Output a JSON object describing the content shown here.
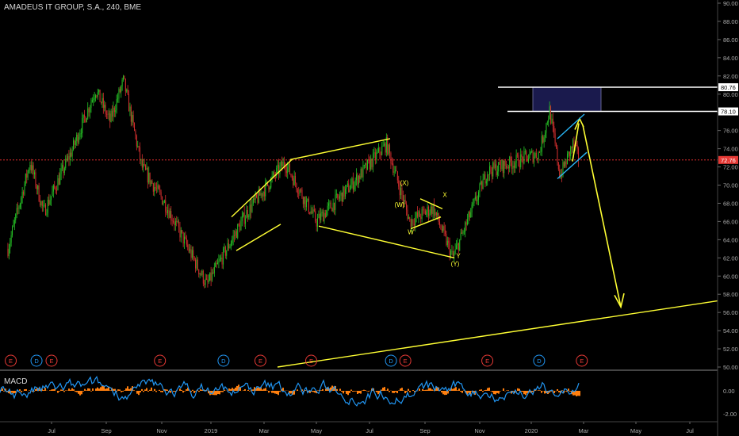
{
  "header": {
    "title": "AMADEUS IT GROUP, S.A., 240, BME"
  },
  "macd": {
    "label": "MACD",
    "ticks": [
      "0.00",
      "-2.00"
    ]
  },
  "colors": {
    "background": "#000000",
    "up": "#26c326",
    "down": "#d32f2f",
    "drawing": "#ffff33",
    "channel": "#29b6f6",
    "box": "#1a1a4d",
    "resistance": "#ffffff",
    "last_price": "#ff3333",
    "macd_line": "#2196f3",
    "macd_hist": "#ff7f0e"
  },
  "chart_data": {
    "type": "candlestick",
    "title": "AMADEUS IT GROUP, S.A., 240, BME",
    "ylim": [
      50,
      90
    ],
    "y_ticks": [
      "90.00",
      "88.00",
      "86.00",
      "84.00",
      "82.00",
      "80.00",
      "78.00",
      "76.00",
      "74.00",
      "72.00",
      "70.00",
      "68.00",
      "66.00",
      "64.00",
      "62.00",
      "60.00",
      "58.00",
      "56.00",
      "54.00",
      "52.00",
      "50.00"
    ],
    "x_ticks": [
      "Jul",
      "Sep",
      "Nov",
      "2019",
      "Mar",
      "May",
      "Jul",
      "Sep",
      "Nov",
      "2020",
      "Mar",
      "May",
      "Jul"
    ],
    "price_path": [
      {
        "x": "2018-05",
        "y": 63
      },
      {
        "x": "2018-06",
        "y": 72.5
      },
      {
        "x": "2018-06-20",
        "y": 67
      },
      {
        "x": "2018-07-25",
        "y": 74
      },
      {
        "x": "2018-08-20",
        "y": 80.5
      },
      {
        "x": "2018-09-05",
        "y": 77
      },
      {
        "x": "2018-09-20",
        "y": 81.5
      },
      {
        "x": "2018-10-10",
        "y": 72
      },
      {
        "x": "2018-11-05",
        "y": 68
      },
      {
        "x": "2018-12-27",
        "y": 59
      },
      {
        "x": "2019-02-10",
        "y": 67
      },
      {
        "x": "2019-03-25",
        "y": 72.5
      },
      {
        "x": "2019-05-01",
        "y": 66
      },
      {
        "x": "2019-06-10",
        "y": 70
      },
      {
        "x": "2019-07-20",
        "y": 74.5
      },
      {
        "x": "2019-08-15",
        "y": 66
      },
      {
        "x": "2019-09-10",
        "y": 67.5
      },
      {
        "x": "2019-10-02",
        "y": 62
      },
      {
        "x": "2019-11-10",
        "y": 71.5
      },
      {
        "x": "2020-01-10",
        "y": 73.5
      },
      {
        "x": "2020-01-22",
        "y": 78.2
      },
      {
        "x": "2020-02-03",
        "y": 71
      },
      {
        "x": "2020-02-18",
        "y": 74.5
      },
      {
        "x": "2020-02-25",
        "y": 72.76
      }
    ],
    "last_price": 72.76,
    "levels": [
      80.76,
      78.1
    ],
    "annotations": [
      "(X)",
      "(W)",
      "W",
      "X",
      "Y",
      "(Y)"
    ],
    "events": [
      {
        "x": "2018-05-05",
        "label": "E"
      },
      {
        "x": "2018-06-10",
        "label": "D"
      },
      {
        "x": "2018-07-01",
        "label": "E"
      },
      {
        "x": "2018-10-30",
        "label": "E"
      },
      {
        "x": "2019-01-15",
        "label": "D"
      },
      {
        "x": "2019-02-25",
        "label": "E"
      },
      {
        "x": "2019-04-25",
        "label": "E"
      },
      {
        "x": "2019-07-25",
        "label": "D"
      },
      {
        "x": "2019-08-10",
        "label": "E"
      },
      {
        "x": "2019-11-10",
        "label": "E"
      },
      {
        "x": "2020-01-10",
        "label": "D"
      },
      {
        "x": "2020-02-28",
        "label": "E"
      }
    ]
  }
}
